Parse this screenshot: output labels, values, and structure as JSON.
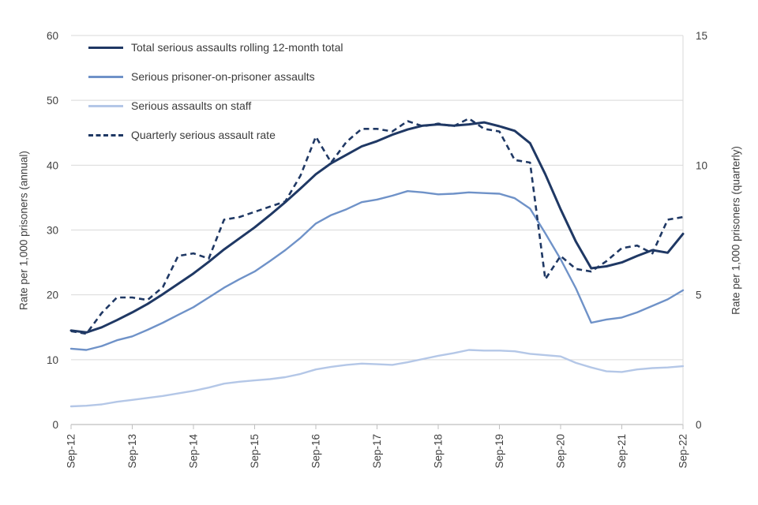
{
  "chart_data": {
    "type": "line",
    "title": "",
    "grid": true,
    "legend_position": "top-left-inside",
    "left_axis": {
      "label": "Rate per 1,000 prisoners (annual)",
      "min": 0,
      "max": 60,
      "ticks": [
        0,
        10,
        20,
        30,
        40,
        50,
        60
      ]
    },
    "right_axis": {
      "label": "Rate per 1,000 prisoners (quarterly)",
      "min": 0,
      "max": 15,
      "ticks": [
        0,
        5,
        10,
        15
      ]
    },
    "x_tick_every": 4,
    "x": [
      "Sep-12",
      "Dec-12",
      "Mar-13",
      "Jun-13",
      "Sep-13",
      "Dec-13",
      "Mar-14",
      "Jun-14",
      "Sep-14",
      "Dec-14",
      "Mar-15",
      "Jun-15",
      "Sep-15",
      "Dec-15",
      "Mar-16",
      "Jun-16",
      "Sep-16",
      "Dec-16",
      "Mar-17",
      "Jun-17",
      "Sep-17",
      "Dec-17",
      "Mar-18",
      "Jun-18",
      "Sep-18",
      "Dec-18",
      "Mar-19",
      "Jun-19",
      "Sep-19",
      "Dec-19",
      "Mar-20",
      "Jun-20",
      "Sep-20",
      "Dec-20",
      "Mar-21",
      "Jun-21",
      "Sep-21",
      "Dec-21",
      "Mar-22",
      "Jun-22",
      "Sep-22"
    ],
    "series": [
      {
        "name": "Total serious assaults rolling 12-month total",
        "color": "#1F3864",
        "style": "solid",
        "width": 3,
        "axis": "left",
        "values": [
          14.5,
          14.2,
          15.0,
          16.1,
          17.3,
          18.6,
          20.1,
          21.7,
          23.3,
          25.1,
          27.0,
          28.7,
          30.4,
          32.3,
          34.3,
          36.4,
          38.6,
          40.3,
          41.6,
          42.9,
          43.7,
          44.7,
          45.5,
          46.1,
          46.3,
          46.1,
          46.3,
          46.6,
          46.0,
          45.3,
          43.4,
          38.6,
          33.2,
          28.2,
          24.1,
          24.4,
          25.0,
          26.0,
          26.9,
          26.5,
          29.4
        ]
      },
      {
        "name": "Serious prisoner-on-prisoner assaults",
        "color": "#6F92C8",
        "style": "solid",
        "width": 2.4,
        "axis": "left",
        "values": [
          11.7,
          11.5,
          12.1,
          13.0,
          13.6,
          14.6,
          15.7,
          16.9,
          18.1,
          19.6,
          21.1,
          22.4,
          23.6,
          25.2,
          26.9,
          28.8,
          31.0,
          32.3,
          33.2,
          34.3,
          34.7,
          35.3,
          36.0,
          35.8,
          35.5,
          35.6,
          35.8,
          35.7,
          35.6,
          34.9,
          33.3,
          29.5,
          25.5,
          21.0,
          15.7,
          16.2,
          16.5,
          17.3,
          18.3,
          19.3,
          20.7
        ]
      },
      {
        "name": "Serious assaults on staff",
        "color": "#B4C7E7",
        "style": "solid",
        "width": 2.4,
        "axis": "left",
        "values": [
          2.8,
          2.9,
          3.1,
          3.5,
          3.8,
          4.1,
          4.4,
          4.8,
          5.2,
          5.7,
          6.3,
          6.6,
          6.8,
          7.0,
          7.3,
          7.8,
          8.5,
          8.9,
          9.2,
          9.4,
          9.3,
          9.2,
          9.6,
          10.1,
          10.6,
          11.0,
          11.5,
          11.4,
          11.4,
          11.3,
          10.9,
          10.7,
          10.5,
          9.5,
          8.8,
          8.2,
          8.1,
          8.5,
          8.7,
          8.8,
          9.0
        ]
      },
      {
        "name": "Quarterly serious assault rate",
        "color": "#1F3864",
        "style": "dashed",
        "width": 2.6,
        "axis": "right",
        "values": [
          3.6,
          3.5,
          4.3,
          4.9,
          4.9,
          4.8,
          5.3,
          6.5,
          6.6,
          6.4,
          7.9,
          8.0,
          8.2,
          8.4,
          8.6,
          9.6,
          11.1,
          10.1,
          10.9,
          11.4,
          11.4,
          11.3,
          11.7,
          11.5,
          11.6,
          11.5,
          11.8,
          11.4,
          11.3,
          10.2,
          10.1,
          5.6,
          6.5,
          6.0,
          5.9,
          6.3,
          6.8,
          6.9,
          6.6,
          7.9,
          8.0
        ]
      }
    ]
  }
}
